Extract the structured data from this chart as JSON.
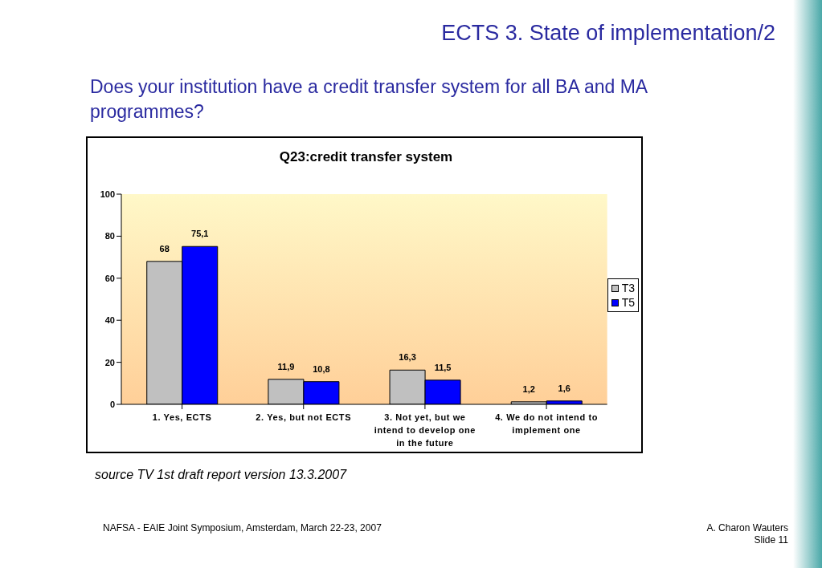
{
  "chart_data": {
    "type": "bar",
    "title": "Q23:credit transfer system",
    "categories": [
      "1. Yes, ECTS",
      "2. Yes, but not ECTS",
      "3. Not yet, but we intend to develop one in the future",
      "4. We do not intend to implement one"
    ],
    "series": [
      {
        "name": "T3",
        "color": "#c0c0c0",
        "values": [
          68,
          11.9,
          16.3,
          1.2
        ],
        "value_labels": [
          "68",
          "11,9",
          "16,3",
          "1,2"
        ]
      },
      {
        "name": "T5",
        "color": "#0000ff",
        "values": [
          75.1,
          10.8,
          11.5,
          1.6
        ],
        "value_labels": [
          "75,1",
          "10,8",
          "11,5",
          "1,6"
        ]
      }
    ],
    "ylim": [
      0,
      100
    ],
    "yticks": [
      0,
      20,
      40,
      60,
      80,
      100
    ],
    "grid": false,
    "legend": "right",
    "annotations": [
      "ECTS 3. State of implementation/2",
      "Does your institution have a credit transfer system for all BA and MA programmes?",
      "source TV 1st draft report version 13.3.2007",
      "NAFSA - EAIE Joint Symposium, Amsterdam, March 22-23, 2007",
      "A. Charon Wauters",
      "Slide 11"
    ]
  }
}
